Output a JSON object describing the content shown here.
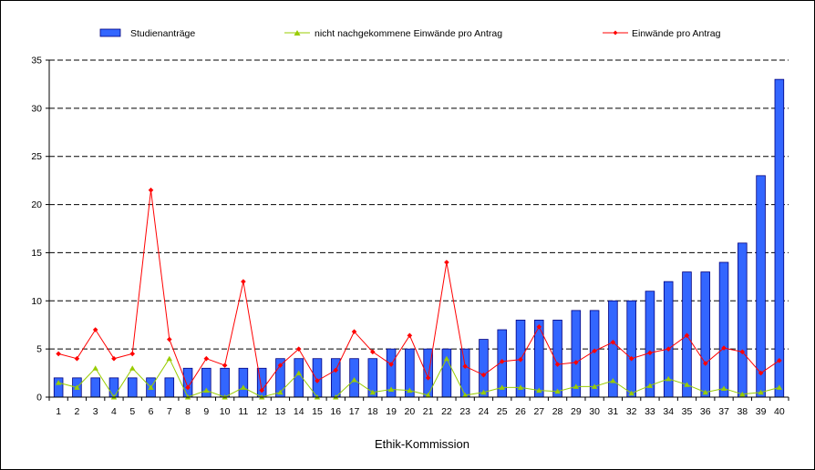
{
  "colors": {
    "bar_fill": "#3366ff",
    "bar_stroke": "#000080",
    "series2": "#99cc00",
    "series3": "#ff0000",
    "grid": "#000000"
  },
  "chart_data": {
    "type": "bar",
    "title": "",
    "xlabel": "Ethik-Kommission",
    "ylabel": "",
    "ylim": [
      0,
      35
    ],
    "yticks": [
      0,
      5,
      10,
      15,
      20,
      25,
      30,
      35
    ],
    "grid": true,
    "legend_position": "top",
    "categories": [
      "1",
      "2",
      "3",
      "4",
      "5",
      "6",
      "7",
      "8",
      "9",
      "10",
      "11",
      "12",
      "13",
      "14",
      "15",
      "16",
      "17",
      "18",
      "19",
      "20",
      "21",
      "22",
      "23",
      "24",
      "25",
      "26",
      "27",
      "28",
      "29",
      "30",
      "31",
      "32",
      "33",
      "34",
      "35",
      "36",
      "37",
      "38",
      "39",
      "40"
    ],
    "series": [
      {
        "name": "Studienanträge",
        "kind": "bar",
        "color": "#3366ff",
        "values": [
          2,
          2,
          2,
          2,
          2,
          2,
          2,
          3,
          3,
          3,
          3,
          3,
          4,
          4,
          4,
          4,
          4,
          4,
          5,
          5,
          5,
          5,
          5,
          6,
          7,
          8,
          8,
          8,
          9,
          9,
          10,
          10,
          11,
          12,
          13,
          13,
          14,
          16,
          23,
          33
        ]
      },
      {
        "name": "nicht nachgekommene Einwände pro Antrag",
        "kind": "line",
        "marker": "triangle",
        "color": "#99cc00",
        "values": [
          1.5,
          1,
          3,
          0,
          3,
          1,
          4,
          0,
          0.7,
          0,
          1,
          0,
          0.5,
          2.5,
          0,
          0,
          1.8,
          0.5,
          0.8,
          0.7,
          0.2,
          4,
          0.2,
          0.5,
          1,
          1,
          0.7,
          0.6,
          1.1,
          1.1,
          1.7,
          0.4,
          1.2,
          1.9,
          1.3,
          0.5,
          0.9,
          0.3,
          0.5,
          1
        ]
      },
      {
        "name": "Einwände pro Antrag",
        "kind": "line",
        "marker": "diamond",
        "color": "#ff0000",
        "values": [
          4.5,
          4,
          7,
          4,
          4.5,
          21.5,
          6,
          1,
          4,
          3.3,
          12,
          0.7,
          3.3,
          5,
          1.7,
          2.8,
          6.8,
          4.7,
          3.4,
          6.4,
          2,
          14,
          3.2,
          2.3,
          3.7,
          3.9,
          7.3,
          3.4,
          3.6,
          4.8,
          5.7,
          4,
          4.6,
          5,
          6.4,
          3.5,
          5.1,
          4.7,
          2.5,
          3.8
        ]
      }
    ]
  }
}
